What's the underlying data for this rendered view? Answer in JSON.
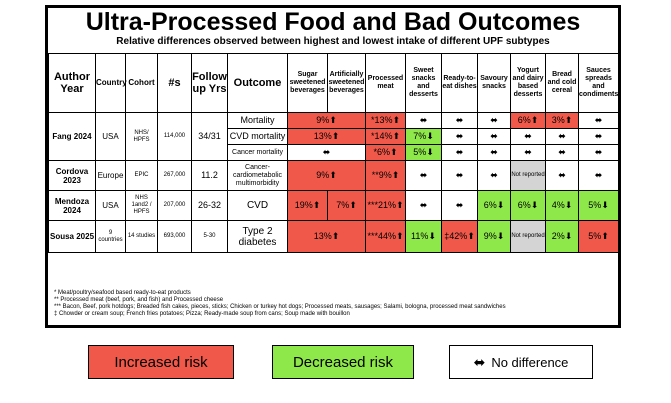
{
  "title": "Ultra-Processed Food and Bad Outcomes",
  "subtitle": "Relative differences observed between highest and lowest intake of different UPF subtypes",
  "headers": {
    "author_year": "Author Year",
    "country": "Country",
    "cohort": "Cohort",
    "n": "#s",
    "follow_up": "Follow up Yrs",
    "outcome": "Outcome",
    "sugar": "Sugar sweetened beverages",
    "artificial": "Artificially sweetened beverages",
    "processed_meat": "Processed meat",
    "sweet_snacks": "Sweet snacks and desserts",
    "ready_to_eat": "Ready-to-eat dishes",
    "savoury": "Savoury snacks",
    "yogurt": "Yogurt and dairy based desserts",
    "bread": "Bread and cold cereal",
    "sauces": "Sauces spreads and condiments"
  },
  "rows": {
    "fang": {
      "author": "Fang 2024",
      "country": "USA",
      "cohort": "NHS/ HPFS",
      "n": "114,000",
      "follow_up": "34/31",
      "mortality": {
        "outcome": "Mortality",
        "sugar": "9%⬆",
        "processed_meat": "*13%⬆",
        "sweet": "⬌",
        "ready": "⬌",
        "savoury": "⬌",
        "yogurt": "6%⬆",
        "bread": "3%⬆",
        "sauces": "⬌"
      },
      "cvd": {
        "outcome": "CVD mortality",
        "sugar": "13%⬆",
        "processed_meat": "*14%⬆",
        "sweet": "7%⬇",
        "ready": "⬌",
        "savoury": "⬌",
        "yogurt": "⬌",
        "bread": "⬌",
        "sauces": "⬌"
      },
      "cancer": {
        "outcome": "Cancer mortality",
        "sugar": "⬌",
        "processed_meat": "*6%⬆",
        "sweet": "5%⬇",
        "ready": "⬌",
        "savoury": "⬌",
        "yogurt": "⬌",
        "bread": "⬌",
        "sauces": "⬌"
      }
    },
    "cordova": {
      "author": "Cordova 2023",
      "country": "Europe",
      "cohort": "EPIC",
      "n": "267,000",
      "follow_up": "11.2",
      "outcome": "Cancer-cardiometabolic multimorbidity",
      "sugar": "9%⬆",
      "processed_meat": "**9%⬆",
      "sweet": "⬌",
      "ready": "⬌",
      "savoury": "⬌",
      "yogurt": "Not reported",
      "bread": "⬌",
      "sauces": "⬌"
    },
    "mendoza": {
      "author": "Mendoza 2024",
      "country": "USA",
      "cohort": "NHS 1and2 / HPFS",
      "n": "207,000",
      "follow_up": "26-32",
      "outcome": "CVD",
      "sugar": "19%⬆",
      "artificial": "7%⬆",
      "processed_meat": "***21%⬆",
      "sweet": "⬌",
      "ready": "⬌",
      "savoury": "6%⬇",
      "yogurt": "6%⬇",
      "bread": "4%⬇",
      "sauces": "5%⬇"
    },
    "sousa": {
      "author": "Sousa 2025",
      "country": "9 countries",
      "cohort": "14 studies",
      "n": "693,000",
      "follow_up": "5-30",
      "outcome": "Type 2 diabetes",
      "sugar": "13%⬆",
      "processed_meat": "***44%⬆",
      "sweet": "11%⬇",
      "ready": "‡42%⬆",
      "savoury": "9%⬇",
      "yogurt": "Not reported",
      "bread": "2%⬇",
      "sauces": "5%⬆"
    }
  },
  "notes": [
    "* Meat/poultry/seafood based ready-to-eat products",
    "** Processed meat (beef, pork, and fish) and Processed cheese",
    "*** Bacon, Beef, pork hotdogs; Breaded fish cakes, pieces, sticks; Chicken or turkey hot dogs; Processed meats, sausages; Salami, bologna, processed meat sandwiches",
    "‡ Chowder or cream soup; French fries potatoes; Pizza; Ready-made soup from cans; Soup made with bouillon"
  ],
  "legend": {
    "increased": "Increased risk",
    "decreased": "Decreased risk",
    "no_difference_icon": "⬌",
    "no_difference": "No difference"
  },
  "colors": {
    "increased": "#f0584a",
    "decreased": "#8fe84a",
    "not_reported": "#d4d4d4"
  }
}
